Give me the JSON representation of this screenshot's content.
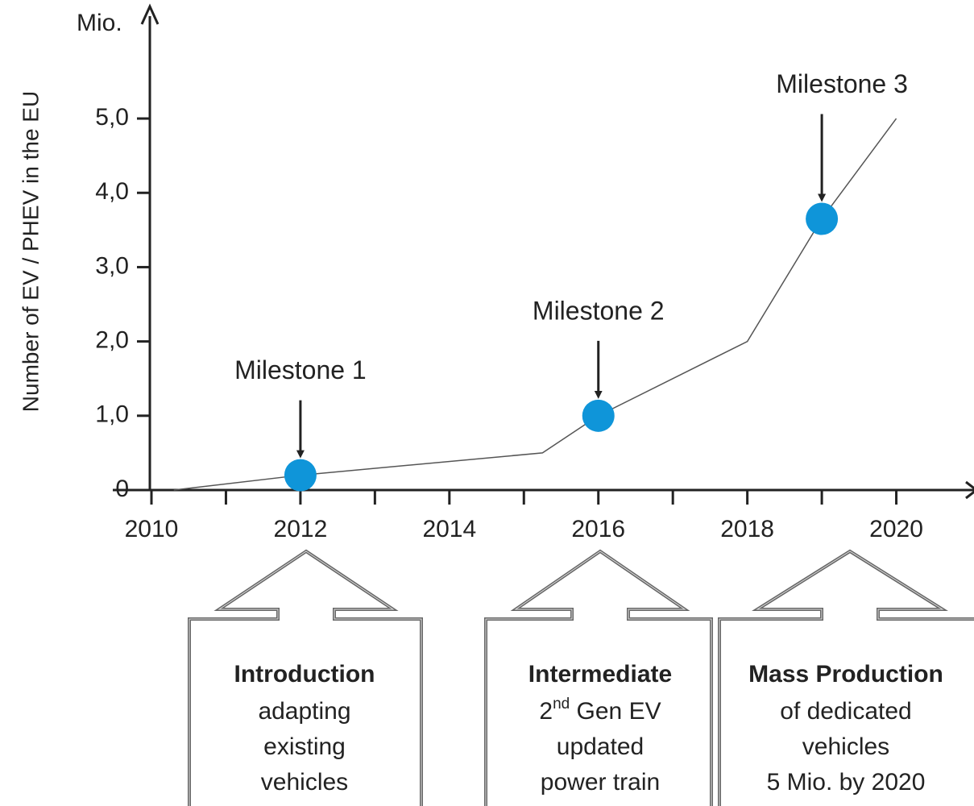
{
  "chart_data": {
    "type": "line",
    "y_label": "Number of EV / PHEV in the EU",
    "y_unit": "Mio.",
    "x": [
      2010.3,
      2012,
      2015.25,
      2016,
      2018,
      2019,
      2020
    ],
    "values": [
      0,
      0.2,
      0.5,
      1.0,
      2.0,
      3.65,
      5.0
    ],
    "color": "#555555",
    "xlim": [
      2010,
      2021
    ],
    "xticks": [
      2010,
      2012,
      2014,
      2016,
      2018,
      2020
    ],
    "xminorticks": [
      2011,
      2013,
      2015,
      2017,
      2019
    ],
    "ylim": [
      0,
      6.4
    ],
    "yticks": [
      0,
      {
        "value": 1,
        "label": "1,0"
      },
      {
        "value": 2,
        "label": "2,0"
      },
      {
        "value": 3,
        "label": "3,0"
      },
      {
        "value": 4,
        "label": "4,0"
      },
      {
        "value": 5,
        "label": "5,0"
      }
    ],
    "milestones": {
      "names": [
        "Milestone 1",
        "Milestone 2",
        "Milestone 3"
      ],
      "x": [
        2012,
        2016,
        2019
      ],
      "values": [
        0.2,
        1.0,
        3.65
      ],
      "color": "#0f95d9"
    },
    "phases": [
      {
        "title": "Introduction",
        "lines": [
          "adapting",
          "existing",
          "vehicles"
        ]
      },
      {
        "title": "Intermediate",
        "lines": [
          [
            "2",
            "nd",
            " Gen EV"
          ],
          "updated",
          "power train"
        ]
      },
      {
        "title": "Mass Production",
        "lines": [
          "of dedicated",
          "vehicles",
          "5 Mio. by 2020"
        ]
      }
    ]
  }
}
